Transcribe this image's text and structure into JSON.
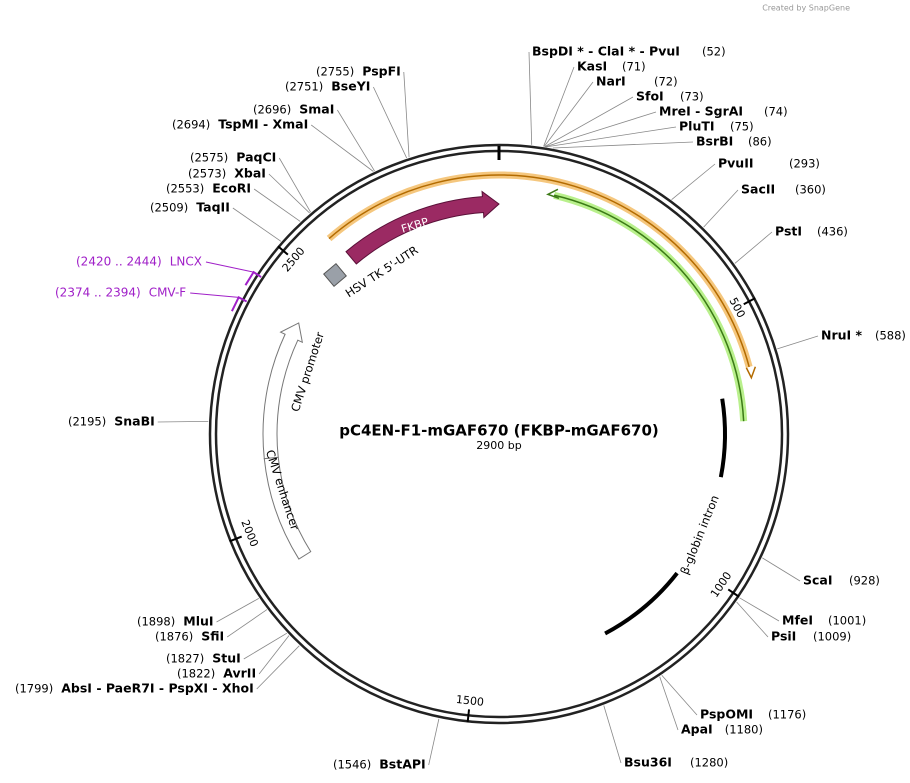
{
  "credit": "Created by SnapGene",
  "title": "pC4EN-F1-mGAF670  (FKBP-mGAF670)",
  "subtitle": "2900 bp",
  "ticks": [
    500,
    1000,
    1500,
    2000,
    2500
  ],
  "features": [
    {
      "label": "FKBP"
    },
    {
      "label": "HSV TK 5'-UTR"
    },
    {
      "label": "CMV promoter"
    },
    {
      "label": "CMV enhancer"
    },
    {
      "label": "β-globin intron"
    }
  ],
  "enzymes": [
    {
      "name": "BspDI * - ClaI * - PvuI",
      "site": "(52)"
    },
    {
      "name": "KasI",
      "site": "(71)"
    },
    {
      "name": "NarI",
      "site": "(72)"
    },
    {
      "name": "SfoI",
      "site": "(73)"
    },
    {
      "name": "MreI - SgrAI",
      "site": "(74)"
    },
    {
      "name": "PluTI",
      "site": "(75)"
    },
    {
      "name": "BsrBI",
      "site": "(86)"
    },
    {
      "name": "PvuII",
      "site": "(293)"
    },
    {
      "name": "SacII",
      "site": "(360)"
    },
    {
      "name": "PstI",
      "site": "(436)"
    },
    {
      "name": "NruI *",
      "site": "(588)"
    },
    {
      "name": "ScaI",
      "site": "(928)"
    },
    {
      "name": "MfeI",
      "site": "(1001)"
    },
    {
      "name": "PsiI",
      "site": "(1009)"
    },
    {
      "name": "PspOMI",
      "site": "(1176)"
    },
    {
      "name": "ApaI",
      "site": "(1180)"
    },
    {
      "name": "Bsu36I",
      "site": "(1280)"
    },
    {
      "name": "BstAPI",
      "site": "(1546)"
    },
    {
      "name": "AbsI - PaeR7I - PspXI - XhoI",
      "site": "(1799)"
    },
    {
      "name": "AvrII",
      "site": "(1822)"
    },
    {
      "name": "StuI",
      "site": "(1827)"
    },
    {
      "name": "SfiI",
      "site": "(1876)"
    },
    {
      "name": "MluI",
      "site": "(1898)"
    },
    {
      "name": "SnaBI",
      "site": "(2195)"
    },
    {
      "name": "TaqII",
      "site": "(2509)"
    },
    {
      "name": "EcoRI",
      "site": "(2553)"
    },
    {
      "name": "XbaI",
      "site": "(2573)"
    },
    {
      "name": "PaqCI",
      "site": "(2575)"
    },
    {
      "name": "TspMI - XmaI",
      "site": "(2694)"
    },
    {
      "name": "SmaI",
      "site": "(2696)"
    },
    {
      "name": "BseYI",
      "site": "(2751)"
    },
    {
      "name": "PspFI",
      "site": "(2755)"
    }
  ],
  "primers": [
    {
      "name": "LNCX",
      "site": "(2420 .. 2444)"
    },
    {
      "name": "CMV-F",
      "site": "(2374 .. 2394)"
    }
  ]
}
